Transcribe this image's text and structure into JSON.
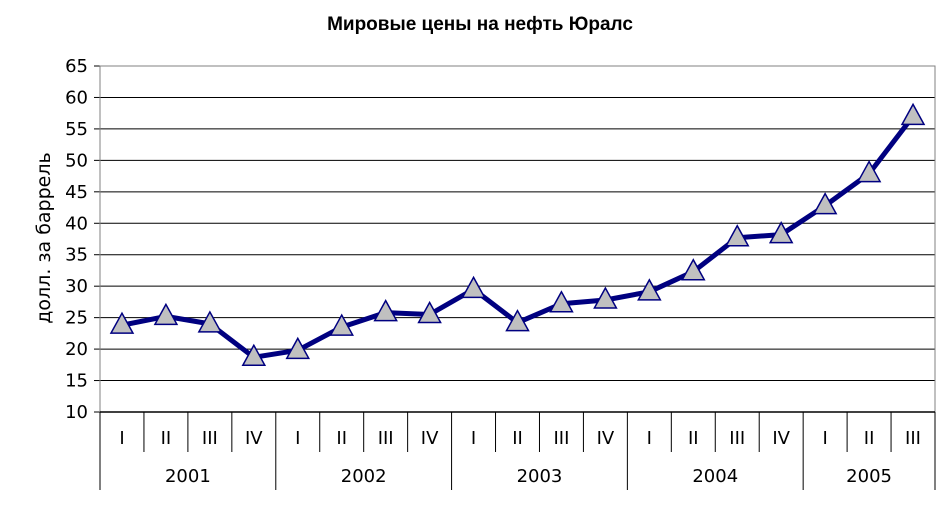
{
  "chart_data": {
    "type": "line",
    "title": "Мировые цены на нефть Юралс",
    "ylabel": "долл. за баррель",
    "xlabel": "",
    "ylim": [
      10,
      65
    ],
    "yticks": [
      10,
      15,
      20,
      25,
      30,
      35,
      40,
      45,
      50,
      55,
      60,
      65
    ],
    "grid": true,
    "legend": "none",
    "categories": [
      "I",
      "II",
      "III",
      "IV",
      "I",
      "II",
      "III",
      "IV",
      "I",
      "II",
      "III",
      "IV",
      "I",
      "II",
      "III",
      "IV",
      "I",
      "II",
      "III"
    ],
    "groups": [
      {
        "label": "2001",
        "count": 4
      },
      {
        "label": "2002",
        "count": 4
      },
      {
        "label": "2003",
        "count": 4
      },
      {
        "label": "2004",
        "count": 4
      },
      {
        "label": "2005",
        "count": 3
      }
    ],
    "series": [
      {
        "values": [
          23.8,
          25.2,
          24.0,
          18.7,
          19.8,
          23.5,
          25.8,
          25.5,
          29.5,
          24.2,
          27.2,
          27.8,
          29.1,
          32.3,
          37.7,
          38.2,
          42.8,
          47.9,
          57.0
        ],
        "color": "#000080",
        "marker": "triangle",
        "marker_color": "#c0c0c0"
      }
    ]
  }
}
